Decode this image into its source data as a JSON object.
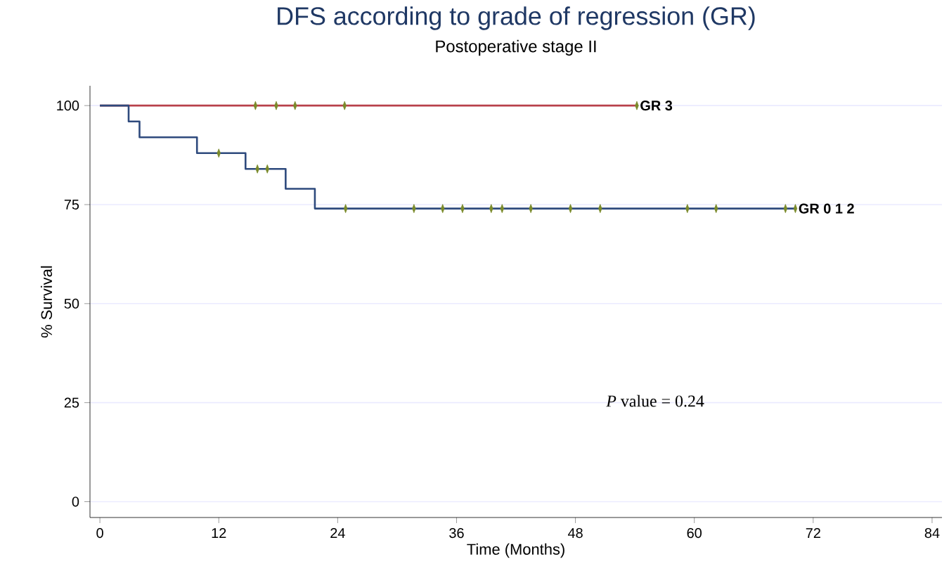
{
  "chart_data": {
    "type": "step",
    "title": "DFS according to grade of regression (GR)",
    "subtitle": "Postoperative stage II",
    "xlabel": "Time (Months)",
    "ylabel": "% Survival",
    "xlim": [
      -1,
      85
    ],
    "ylim": [
      -4,
      105
    ],
    "xticks": [
      0,
      12,
      24,
      36,
      48,
      60,
      72,
      84
    ],
    "yticks": [
      0,
      25,
      50,
      75,
      100
    ],
    "grid": "y",
    "series": [
      {
        "name": "GR 3",
        "color": "#b8404a",
        "x": [
          0,
          54.2
        ],
        "values": [
          100,
          100
        ]
      },
      {
        "name": "GR 0 1 2",
        "color": "#2e4a7d",
        "x": [
          0,
          2.9,
          4.0,
          9.8,
          14.7,
          18.75,
          21.7,
          70.2
        ],
        "values": [
          100,
          96,
          92,
          88,
          84,
          79,
          74,
          74
        ]
      },
      {
        "type": "scatter",
        "marker": "diamond",
        "color": "#7a8a2a",
        "x": [
          15.7,
          17.8,
          19.7,
          24.7,
          54.2
        ],
        "values": [
          100,
          100,
          100,
          100,
          100
        ]
      },
      {
        "type": "scatter",
        "marker": "diamond",
        "color": "#7a8a2a",
        "x": [
          12.0,
          15.9,
          16.9,
          24.8,
          31.7,
          34.6,
          36.6,
          39.5,
          40.6,
          43.5,
          47.5,
          50.5,
          59.3,
          62.2,
          69.2,
          70.2
        ],
        "values": [
          88,
          84,
          84,
          74,
          74,
          74,
          74,
          74,
          74,
          74,
          74,
          74,
          74,
          74,
          74,
          74
        ]
      }
    ],
    "annotations": [
      "*P* value = 0.24"
    ]
  }
}
